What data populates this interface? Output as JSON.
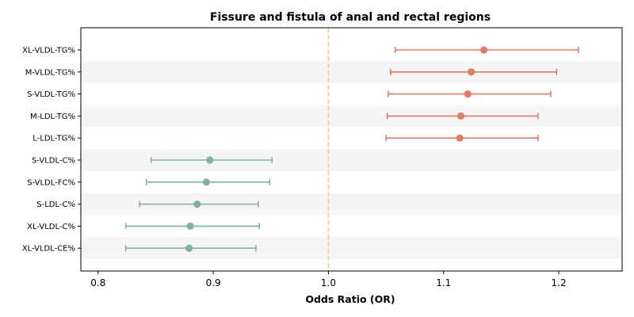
{
  "chart_data": {
    "type": "forest",
    "title": "Fissure and fistula of anal and rectal regions",
    "xlabel": "Odds Ratio (OR)",
    "xlim": [
      0.785,
      1.255
    ],
    "xticks": [
      0.8,
      0.9,
      1.0,
      1.1,
      1.2
    ],
    "xtick_labels": [
      "0.8",
      "0.9",
      "1.0",
      "1.1",
      "1.2"
    ],
    "reference_line": 1.0,
    "reference_color": "#f2c98a",
    "colors": {
      "positive": "#e07c64",
      "negative": "#80b59c",
      "band": "#f5f5f5"
    },
    "rows": [
      {
        "label": "XL-VLDL-TG%",
        "or": 1.135,
        "lo": 1.058,
        "hi": 1.217
      },
      {
        "label": "M-VLDL-TG%",
        "or": 1.124,
        "lo": 1.054,
        "hi": 1.198
      },
      {
        "label": "S-VLDL-TG%",
        "or": 1.121,
        "lo": 1.052,
        "hi": 1.193
      },
      {
        "label": "M-LDL-TG%",
        "or": 1.115,
        "lo": 1.051,
        "hi": 1.182
      },
      {
        "label": "L-LDL-TG%",
        "or": 1.114,
        "lo": 1.05,
        "hi": 1.182
      },
      {
        "label": "S-VLDL-C%",
        "or": 0.897,
        "lo": 0.846,
        "hi": 0.951
      },
      {
        "label": "S-VLDL-FC%",
        "or": 0.894,
        "lo": 0.842,
        "hi": 0.949
      },
      {
        "label": "S-LDL-C%",
        "or": 0.886,
        "lo": 0.836,
        "hi": 0.939
      },
      {
        "label": "XL-VLDL-C%",
        "or": 0.88,
        "lo": 0.824,
        "hi": 0.94
      },
      {
        "label": "XL-VLDL-CE%",
        "or": 0.879,
        "lo": 0.824,
        "hi": 0.937
      }
    ]
  }
}
